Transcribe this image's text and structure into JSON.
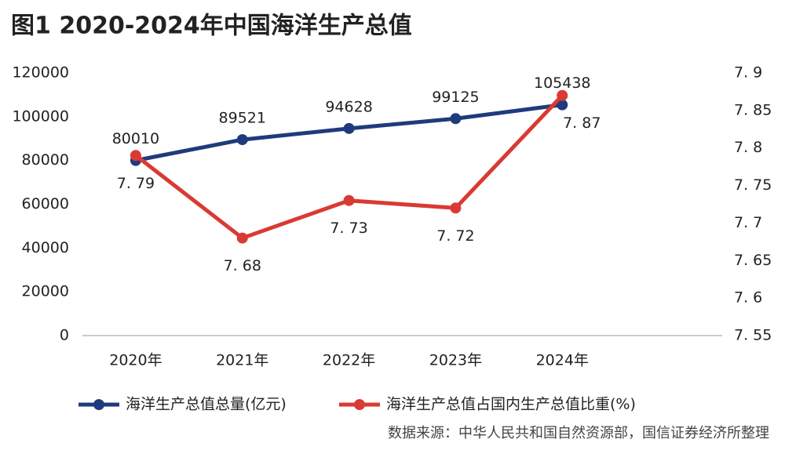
{
  "chart_data": {
    "type": "line",
    "title": "图1  2020-2024年中国海洋生产总值",
    "categories": [
      "2020年",
      "2021年",
      "2022年",
      "2023年",
      "2024年"
    ],
    "series": [
      {
        "name": "海洋生产总值总量(亿元)",
        "color": "#1f3b7d",
        "values": [
          80010,
          89521,
          94628,
          99125,
          105438
        ]
      },
      {
        "name": "海洋生产总值占国内生产总值比重(%)",
        "color": "#d93a33",
        "axis": "y2",
        "values": [
          7.79,
          7.68,
          7.73,
          7.72,
          7.87
        ],
        "value_labels": [
          "7. 79",
          "7. 68",
          "7. 73",
          "7. 72",
          "7. 87"
        ]
      }
    ],
    "ylim": [
      0,
      120000
    ],
    "yticks": [
      0,
      20000,
      40000,
      60000,
      80000,
      100000,
      120000
    ],
    "y2lim": [
      7.55,
      7.9
    ],
    "y2ticks": [
      {
        "value": 7.55,
        "label": "7. 55"
      },
      {
        "value": 7.6,
        "label": "7. 6"
      },
      {
        "value": 7.65,
        "label": "7. 65"
      },
      {
        "value": 7.7,
        "label": "7. 7"
      },
      {
        "value": 7.75,
        "label": "7. 75"
      },
      {
        "value": 7.8,
        "label": "7. 8"
      },
      {
        "value": 7.85,
        "label": "7. 85"
      },
      {
        "value": 7.9,
        "label": "7. 9"
      }
    ],
    "source": "数据来源：中华人民共和国自然资源部，国信证券经济所整理"
  }
}
